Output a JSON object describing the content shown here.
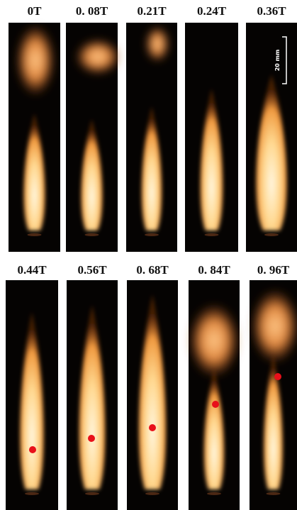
{
  "panels": [
    {
      "label": "0T"
    },
    {
      "label": "0. 08T"
    },
    {
      "label": "0.21T"
    },
    {
      "label": "0.24T"
    },
    {
      "label": "0.36T"
    },
    {
      "label": "0.44T"
    },
    {
      "label": "0.56T"
    },
    {
      "label": "0. 68T"
    },
    {
      "label": "0. 84T"
    },
    {
      "label": "0. 96T"
    }
  ],
  "scale_bar": "20 mm"
}
